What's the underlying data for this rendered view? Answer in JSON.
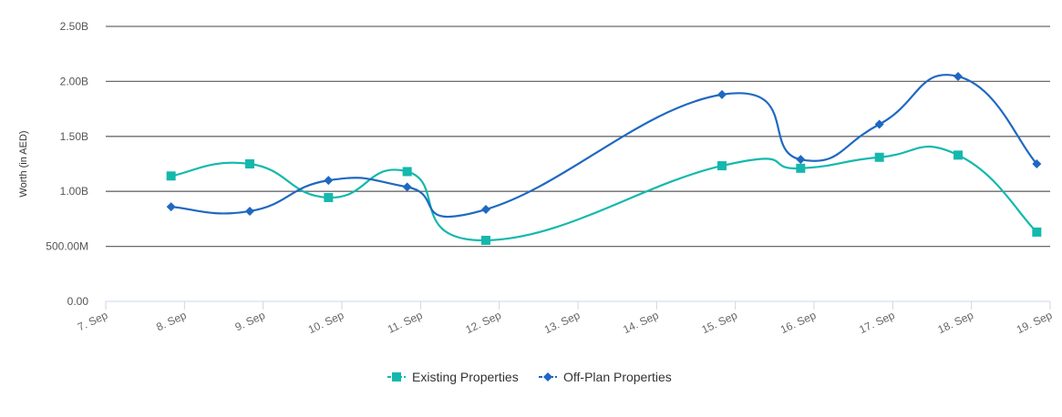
{
  "chart_data": {
    "type": "line",
    "subtype": "spline",
    "title": "",
    "xlabel": "",
    "ylabel": "Worth (in AED)",
    "ylim": [
      0,
      2500000000
    ],
    "yticks": [
      0,
      500000000,
      1000000000,
      1500000000,
      2000000000,
      2500000000
    ],
    "ytick_labels": [
      "0.00",
      "500.00M",
      "1.00B",
      "1.50B",
      "2.00B",
      "2.50B"
    ],
    "xlim": [
      7,
      19
    ],
    "xticks": [
      7,
      8,
      9,
      10,
      11,
      12,
      13,
      14,
      15,
      16,
      17,
      18,
      19
    ],
    "xtick_labels": [
      "7. Sep",
      "8. Sep",
      "9. Sep",
      "10. Sep",
      "11. Sep",
      "12. Sep",
      "13. Sep",
      "14. Sep",
      "15. Sep",
      "16. Sep",
      "17. Sep",
      "18. Sep",
      "19. Sep"
    ],
    "grid": true,
    "legend_position": "bottom-center",
    "series": [
      {
        "name": "Existing Properties",
        "color": "#14b8ad",
        "marker": "square",
        "x": [
          7.83,
          8.83,
          9.83,
          10.83,
          11.83,
          14.83,
          15.83,
          16.83,
          17.83,
          18.83
        ],
        "values": [
          1140000000,
          1250000000,
          944000000,
          1180000000,
          555000000,
          1233000000,
          1210000000,
          1310000000,
          1330000000,
          630000000
        ]
      },
      {
        "name": "Off-Plan Properties",
        "color": "#1f68c1",
        "marker": "diamond",
        "x": [
          7.83,
          8.83,
          9.83,
          10.83,
          11.83,
          14.83,
          15.83,
          16.83,
          17.83,
          18.83
        ],
        "values": [
          860000000,
          820000000,
          1100000000,
          1040000000,
          836000000,
          1880000000,
          1290000000,
          1610000000,
          2045000000,
          1250000000
        ]
      }
    ]
  }
}
